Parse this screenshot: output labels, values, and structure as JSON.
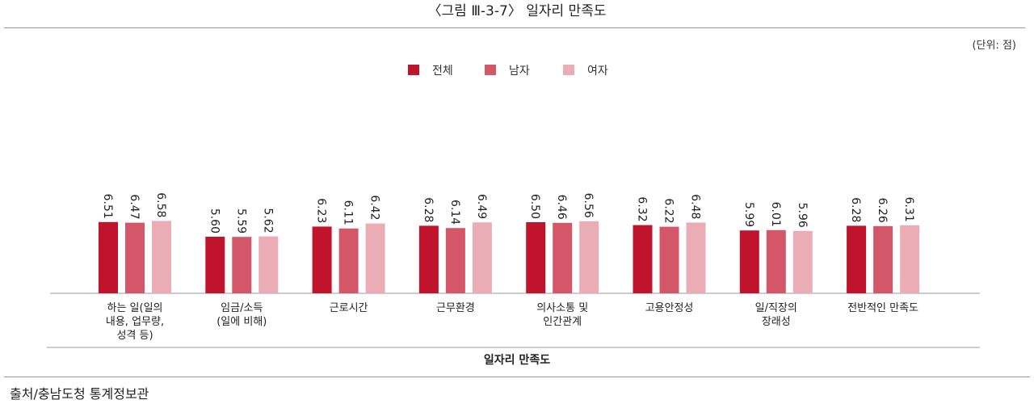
{
  "figure": {
    "title": "〈그림 Ⅲ-3-7〉 일자리 만족도",
    "unit": "(단위: 점)",
    "source": "출처/충남도청 통계정보관"
  },
  "chart_data": {
    "type": "bar",
    "xlabel": "일자리 만족도",
    "ylabel": "",
    "ylim": [
      0,
      7
    ],
    "grid": false,
    "legend_position": "top-center",
    "categories": [
      "하는 일(일의\n내용, 업무량,\n성격 등)",
      "임금/소득\n(일에 비해)",
      "근로시간",
      "근무환경",
      "의사소통 및\n인간관계",
      "고용안정성",
      "일/직장의\n장래성",
      "전반적인 만족도"
    ],
    "series": [
      {
        "name": "전체",
        "color": "#c0142c",
        "values": [
          6.51,
          5.6,
          6.23,
          6.28,
          6.5,
          6.32,
          5.99,
          6.28
        ]
      },
      {
        "name": "남자",
        "color": "#d35768",
        "values": [
          6.47,
          5.59,
          6.11,
          6.14,
          6.46,
          6.22,
          6.01,
          6.26
        ]
      },
      {
        "name": "여자",
        "color": "#ebadb5",
        "values": [
          6.58,
          5.62,
          6.42,
          6.49,
          6.56,
          6.48,
          5.96,
          6.31
        ]
      }
    ],
    "value_labels": [
      [
        "6.51",
        "5.60",
        "6.23",
        "6.28",
        "6.50",
        "6.32",
        "5.99",
        "6.28"
      ],
      [
        "6.47",
        "5.59",
        "6.11",
        "6.14",
        "6.46",
        "6.22",
        "6.01",
        "6.26"
      ],
      [
        "6.58",
        "5.62",
        "6.42",
        "6.49",
        "6.56",
        "6.48",
        "5.96",
        "6.31"
      ]
    ]
  }
}
